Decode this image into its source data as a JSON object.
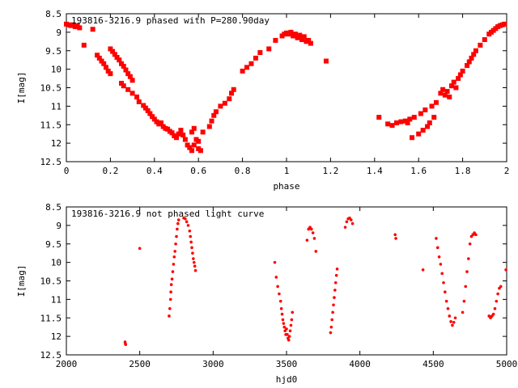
{
  "chart_data": [
    {
      "type": "scatter",
      "title": "193816-3216.9 phased with P=280.90day",
      "xlabel": "phase",
      "ylabel": "I[mag]",
      "xlim": [
        0,
        2
      ],
      "ylim": [
        8.5,
        12.5
      ],
      "y_inverted": true,
      "x_ticks": [
        "0",
        "0.2",
        "0.4",
        "0.6",
        "0.8",
        "1",
        "1.2",
        "1.4",
        "1.6",
        "1.8",
        "2"
      ],
      "y_ticks": [
        "8.5",
        "9",
        "9.5",
        "10",
        "10.5",
        "11",
        "11.5",
        "12",
        "12.5"
      ],
      "grid": false,
      "marker_color": "#ff0000",
      "marker": "filled-square",
      "series": [
        {
          "points": [
            [
              0.0,
              8.78
            ],
            [
              0.01,
              8.8
            ],
            [
              0.02,
              8.82
            ],
            [
              0.03,
              8.8
            ],
            [
              0.04,
              8.85
            ],
            [
              0.05,
              8.82
            ],
            [
              0.06,
              8.88
            ],
            [
              0.08,
              9.35
            ],
            [
              0.12,
              8.92
            ],
            [
              0.14,
              9.62
            ],
            [
              0.15,
              9.7
            ],
            [
              0.16,
              9.78
            ],
            [
              0.17,
              9.85
            ],
            [
              0.18,
              9.95
            ],
            [
              0.19,
              10.05
            ],
            [
              0.2,
              10.12
            ],
            [
              0.2,
              9.45
            ],
            [
              0.21,
              9.52
            ],
            [
              0.22,
              9.6
            ],
            [
              0.23,
              9.68
            ],
            [
              0.24,
              9.75
            ],
            [
              0.25,
              9.85
            ],
            [
              0.26,
              9.92
            ],
            [
              0.27,
              10.02
            ],
            [
              0.28,
              10.12
            ],
            [
              0.29,
              10.2
            ],
            [
              0.3,
              10.3
            ],
            [
              0.25,
              10.38
            ],
            [
              0.26,
              10.45
            ],
            [
              0.28,
              10.55
            ],
            [
              0.3,
              10.65
            ],
            [
              0.32,
              10.75
            ],
            [
              0.33,
              10.88
            ],
            [
              0.35,
              10.98
            ],
            [
              0.36,
              11.05
            ],
            [
              0.37,
              11.12
            ],
            [
              0.38,
              11.2
            ],
            [
              0.39,
              11.28
            ],
            [
              0.4,
              11.35
            ],
            [
              0.41,
              11.42
            ],
            [
              0.42,
              11.48
            ],
            [
              0.43,
              11.45
            ],
            [
              0.44,
              11.55
            ],
            [
              0.45,
              11.6
            ],
            [
              0.46,
              11.62
            ],
            [
              0.47,
              11.68
            ],
            [
              0.48,
              11.72
            ],
            [
              0.49,
              11.8
            ],
            [
              0.5,
              11.85
            ],
            [
              0.51,
              11.75
            ],
            [
              0.52,
              11.65
            ],
            [
              0.53,
              11.78
            ],
            [
              0.54,
              11.9
            ],
            [
              0.55,
              12.05
            ],
            [
              0.56,
              12.12
            ],
            [
              0.57,
              12.2
            ],
            [
              0.58,
              12.05
            ],
            [
              0.59,
              11.9
            ],
            [
              0.6,
              11.95
            ],
            [
              0.6,
              12.15
            ],
            [
              0.61,
              12.2
            ],
            [
              0.57,
              11.7
            ],
            [
              0.58,
              11.6
            ],
            [
              0.62,
              11.7
            ],
            [
              0.65,
              11.55
            ],
            [
              0.66,
              11.4
            ],
            [
              0.67,
              11.25
            ],
            [
              0.68,
              11.15
            ],
            [
              0.7,
              11.0
            ],
            [
              0.72,
              10.92
            ],
            [
              0.74,
              10.8
            ],
            [
              0.75,
              10.65
            ],
            [
              0.76,
              10.55
            ],
            [
              0.8,
              10.05
            ],
            [
              0.82,
              9.95
            ],
            [
              0.84,
              9.85
            ],
            [
              0.86,
              9.7
            ],
            [
              0.88,
              9.55
            ],
            [
              0.92,
              9.45
            ],
            [
              0.95,
              9.22
            ],
            [
              0.98,
              9.1
            ],
            [
              0.99,
              9.05
            ],
            [
              1.0,
              9.02
            ],
            [
              1.01,
              9.05
            ],
            [
              1.02,
              9.0
            ],
            [
              1.03,
              9.1
            ],
            [
              1.04,
              9.05
            ],
            [
              1.05,
              9.15
            ],
            [
              1.06,
              9.08
            ],
            [
              1.07,
              9.2
            ],
            [
              1.08,
              9.12
            ],
            [
              1.09,
              9.25
            ],
            [
              1.1,
              9.22
            ],
            [
              1.11,
              9.3
            ],
            [
              1.18,
              9.78
            ],
            [
              1.42,
              11.3
            ],
            [
              1.46,
              11.48
            ],
            [
              1.48,
              11.52
            ],
            [
              1.5,
              11.45
            ],
            [
              1.52,
              11.42
            ],
            [
              1.54,
              11.4
            ],
            [
              1.55,
              11.45
            ],
            [
              1.56,
              11.35
            ],
            [
              1.57,
              11.85
            ],
            [
              1.58,
              11.3
            ],
            [
              1.6,
              11.75
            ],
            [
              1.61,
              11.2
            ],
            [
              1.62,
              11.65
            ],
            [
              1.63,
              11.1
            ],
            [
              1.64,
              11.55
            ],
            [
              1.65,
              11.45
            ],
            [
              1.66,
              11.0
            ],
            [
              1.67,
              11.3
            ],
            [
              1.68,
              10.9
            ],
            [
              1.7,
              10.65
            ],
            [
              1.71,
              10.55
            ],
            [
              1.72,
              10.7
            ],
            [
              1.73,
              10.6
            ],
            [
              1.74,
              10.75
            ],
            [
              1.75,
              10.45
            ],
            [
              1.76,
              10.35
            ],
            [
              1.77,
              10.5
            ],
            [
              1.78,
              10.25
            ],
            [
              1.79,
              10.15
            ],
            [
              1.8,
              10.05
            ],
            [
              1.82,
              9.9
            ],
            [
              1.83,
              9.8
            ],
            [
              1.84,
              9.7
            ],
            [
              1.85,
              9.6
            ],
            [
              1.86,
              9.5
            ],
            [
              1.88,
              9.35
            ],
            [
              1.9,
              9.2
            ],
            [
              1.92,
              9.05
            ],
            [
              1.93,
              9.0
            ],
            [
              1.94,
              8.95
            ],
            [
              1.95,
              8.9
            ],
            [
              1.96,
              8.85
            ],
            [
              1.97,
              8.82
            ],
            [
              1.98,
              8.8
            ],
            [
              1.99,
              8.78
            ]
          ]
        }
      ]
    },
    {
      "type": "scatter",
      "title": "193816-3216.9 not phased light curve",
      "xlabel": "hjd0",
      "ylabel": "I[mag]",
      "xlim": [
        2000,
        5000
      ],
      "ylim": [
        8.5,
        12.5
      ],
      "y_inverted": true,
      "x_ticks": [
        "2000",
        "2500",
        "3000",
        "3500",
        "4000",
        "4500",
        "5000"
      ],
      "y_ticks": [
        "8.5",
        "9",
        "9.5",
        "10",
        "10.5",
        "11",
        "11.5",
        "12",
        "12.5"
      ],
      "grid": false,
      "marker_color": "#ff0000",
      "marker": "small-dot",
      "series": [
        {
          "points": [
            [
              2400,
              12.15
            ],
            [
              2402,
              12.2
            ],
            [
              2404,
              12.22
            ],
            [
              2500,
              9.62
            ],
            [
              2700,
              11.45
            ],
            [
              2705,
              11.25
            ],
            [
              2710,
              11.0
            ],
            [
              2712,
              10.8
            ],
            [
              2715,
              10.6
            ],
            [
              2720,
              10.45
            ],
            [
              2725,
              10.25
            ],
            [
              2730,
              10.05
            ],
            [
              2735,
              9.85
            ],
            [
              2740,
              9.7
            ],
            [
              2745,
              9.5
            ],
            [
              2750,
              9.3
            ],
            [
              2755,
              9.1
            ],
            [
              2760,
              8.95
            ],
            [
              2765,
              8.85
            ],
            [
              2800,
              8.8
            ],
            [
              2810,
              8.82
            ],
            [
              2820,
              8.9
            ],
            [
              2830,
              9.0
            ],
            [
              2840,
              9.15
            ],
            [
              2845,
              9.3
            ],
            [
              2850,
              9.45
            ],
            [
              2855,
              9.6
            ],
            [
              2860,
              9.75
            ],
            [
              2865,
              9.9
            ],
            [
              2870,
              10.0
            ],
            [
              2875,
              10.1
            ],
            [
              2880,
              10.22
            ],
            [
              3420,
              10.0
            ],
            [
              3430,
              10.4
            ],
            [
              3440,
              10.65
            ],
            [
              3450,
              10.85
            ],
            [
              3460,
              11.05
            ],
            [
              3465,
              11.25
            ],
            [
              3470,
              11.4
            ],
            [
              3475,
              11.55
            ],
            [
              3480,
              11.65
            ],
            [
              3485,
              11.75
            ],
            [
              3490,
              11.85
            ],
            [
              3495,
              11.95
            ],
            [
              3500,
              11.8
            ],
            [
              3505,
              11.95
            ],
            [
              3510,
              12.05
            ],
            [
              3515,
              12.1
            ],
            [
              3520,
              12.0
            ],
            [
              3525,
              11.85
            ],
            [
              3530,
              11.7
            ],
            [
              3535,
              11.55
            ],
            [
              3540,
              11.35
            ],
            [
              3640,
              9.4
            ],
            [
              3650,
              9.1
            ],
            [
              3660,
              9.05
            ],
            [
              3670,
              9.1
            ],
            [
              3680,
              9.2
            ],
            [
              3690,
              9.35
            ],
            [
              3700,
              9.7
            ],
            [
              3800,
              11.9
            ],
            [
              3805,
              11.75
            ],
            [
              3810,
              11.55
            ],
            [
              3815,
              11.35
            ],
            [
              3820,
              11.15
            ],
            [
              3825,
              10.95
            ],
            [
              3830,
              10.75
            ],
            [
              3835,
              10.55
            ],
            [
              3840,
              10.35
            ],
            [
              3845,
              10.18
            ],
            [
              3900,
              9.05
            ],
            [
              3910,
              8.9
            ],
            [
              3920,
              8.82
            ],
            [
              3930,
              8.8
            ],
            [
              3940,
              8.85
            ],
            [
              3950,
              8.95
            ],
            [
              4240,
              9.25
            ],
            [
              4245,
              9.35
            ],
            [
              4430,
              10.2
            ],
            [
              4520,
              9.35
            ],
            [
              4530,
              9.6
            ],
            [
              4540,
              9.85
            ],
            [
              4550,
              10.05
            ],
            [
              4560,
              10.3
            ],
            [
              4570,
              10.55
            ],
            [
              4580,
              10.8
            ],
            [
              4590,
              11.05
            ],
            [
              4600,
              11.25
            ],
            [
              4610,
              11.45
            ],
            [
              4620,
              11.6
            ],
            [
              4630,
              11.7
            ],
            [
              4640,
              11.62
            ],
            [
              4650,
              11.5
            ],
            [
              4700,
              11.35
            ],
            [
              4710,
              11.05
            ],
            [
              4720,
              10.65
            ],
            [
              4730,
              10.25
            ],
            [
              4740,
              9.9
            ],
            [
              4750,
              9.5
            ],
            [
              4760,
              9.3
            ],
            [
              4770,
              9.25
            ],
            [
              4780,
              9.2
            ],
            [
              4790,
              9.25
            ],
            [
              4880,
              11.45
            ],
            [
              4890,
              11.5
            ],
            [
              4900,
              11.45
            ],
            [
              4910,
              11.4
            ],
            [
              4920,
              11.25
            ],
            [
              4930,
              11.05
            ],
            [
              4940,
              10.85
            ],
            [
              4950,
              10.7
            ],
            [
              4960,
              10.65
            ],
            [
              4995,
              10.2
            ]
          ]
        }
      ]
    }
  ]
}
